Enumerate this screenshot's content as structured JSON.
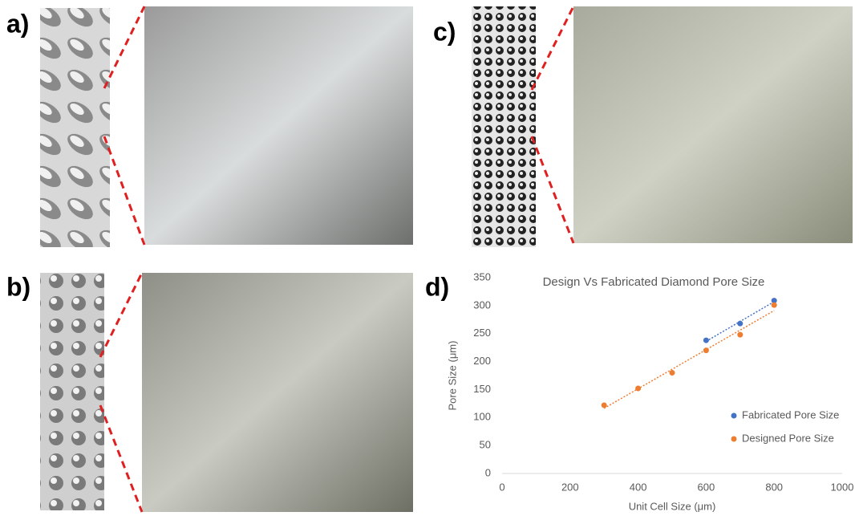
{
  "panel_labels": [
    "a)",
    "b)",
    "c)",
    "d)"
  ],
  "chart_data": {
    "type": "scatter",
    "title": "Design Vs Fabricated Diamond Pore Size",
    "x_label": "Unit Cell Size (μm)",
    "y_label": "Pore Size (μm)",
    "series": [
      {
        "name": "Fabricated Pore Size",
        "color": "#4472c4",
        "x": [
          600,
          700,
          800
        ],
        "values": [
          238,
          268,
          309
        ]
      },
      {
        "name": "Designed Pore Size",
        "color": "#ed7d31",
        "x": [
          300,
          400,
          500,
          600,
          700,
          800
        ],
        "values": [
          122,
          152,
          180,
          220,
          248,
          301
        ]
      }
    ],
    "xlim": [
      0,
      1000
    ],
    "xticks": [
      0,
      200,
      400,
      600,
      800,
      1000
    ],
    "ylim": [
      0,
      350
    ],
    "yticks": [
      0,
      50,
      100,
      150,
      200,
      250,
      300,
      350
    ],
    "trendline": true,
    "grid": false,
    "legend": "lower right"
  }
}
